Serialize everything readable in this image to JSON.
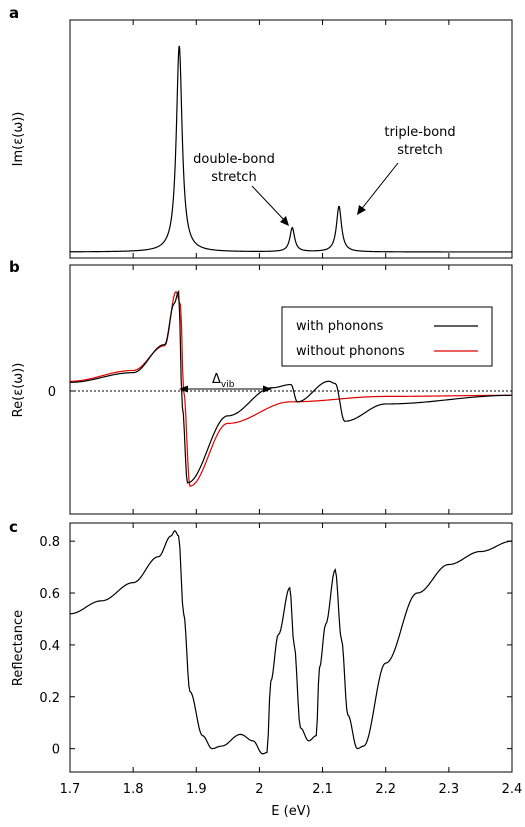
{
  "chart_data": [
    {
      "panel": "a",
      "type": "line",
      "ylabel": "Im(ε(ω))",
      "xlim": [
        1.7,
        2.4
      ],
      "annotations": [
        {
          "text_lines": [
            "double-bond",
            "stretch"
          ],
          "points_to": [
            2.05,
            0.13
          ]
        },
        {
          "text_lines": [
            "triple-bond",
            "stretch"
          ],
          "points_to": [
            2.13,
            0.22
          ]
        }
      ],
      "series": [
        {
          "color": "#000000",
          "peaks": [
            {
              "x0": 1.873,
              "amp": 0.86,
              "gamma": 0.0055
            },
            {
              "x0": 2.052,
              "amp": 0.1,
              "gamma": 0.0045
            },
            {
              "x0": 2.126,
              "amp": 0.19,
              "gamma": 0.0048
            }
          ],
          "x": [
            1.7,
            1.8,
            1.85,
            1.865,
            1.873,
            1.88,
            1.9,
            2.0,
            2.052,
            2.09,
            2.126,
            2.2,
            2.4
          ],
          "y": [
            0.001,
            0.007,
            0.04,
            0.24,
            0.86,
            0.32,
            0.03,
            0.02,
            0.11,
            0.03,
            0.2,
            0.01,
            0.001
          ]
        }
      ]
    },
    {
      "panel": "b",
      "type": "line",
      "ylabel": "Re(ε(ω))",
      "xlim": [
        1.7,
        2.4
      ],
      "ylim": [
        -1.0,
        1.0
      ],
      "ytick_labels": [
        "0"
      ],
      "zero_line": "dotted",
      "annotation": {
        "symbol": "Δ",
        "subscript": "vib",
        "x_from": 1.876,
        "x_to": 2.022,
        "y": 0.0
      },
      "legend": {
        "position": "right",
        "entries": [
          "with phonons",
          "without phonons"
        ]
      },
      "series": [
        {
          "name": "with phonons",
          "color": "#000000",
          "x": [
            1.7,
            1.8,
            1.85,
            1.865,
            1.872,
            1.878,
            1.886,
            1.95,
            2.02,
            2.05,
            2.06,
            2.11,
            2.12,
            2.135,
            2.2,
            2.4
          ],
          "y": [
            0.08,
            0.17,
            0.43,
            0.81,
            0.92,
            -0.15,
            -0.85,
            -0.23,
            0.03,
            0.06,
            -0.1,
            0.09,
            0.07,
            -0.28,
            -0.12,
            -0.04
          ]
        },
        {
          "name": "without phonons",
          "color": "#e00000",
          "x": [
            1.7,
            1.8,
            1.85,
            1.868,
            1.875,
            1.88,
            1.89,
            1.95,
            2.05,
            2.2,
            2.4
          ],
          "y": [
            0.09,
            0.19,
            0.42,
            0.92,
            0.8,
            0.0,
            -0.88,
            -0.3,
            -0.1,
            -0.05,
            -0.04
          ]
        }
      ]
    },
    {
      "panel": "c",
      "type": "line",
      "xlabel": "E (eV)",
      "ylabel": "Reflectance",
      "xlim": [
        1.7,
        2.4
      ],
      "ylim": [
        -0.09,
        0.87
      ],
      "xticks": [
        1.7,
        1.8,
        1.9,
        2.0,
        2.1,
        2.2,
        2.3,
        2.4
      ],
      "xtick_labels": [
        "1.7",
        "1.8",
        "1.9",
        "2",
        "2.1",
        "2.2",
        "2.3",
        "2.4"
      ],
      "yticks": [
        0,
        0.2,
        0.4,
        0.6,
        0.8
      ],
      "ytick_labels": [
        "0",
        "0.2",
        "0.4",
        "0.6",
        "0.8"
      ],
      "series": [
        {
          "color": "#000000",
          "x": [
            1.7,
            1.75,
            1.8,
            1.84,
            1.86,
            1.866,
            1.872,
            1.88,
            1.89,
            1.91,
            1.925,
            1.94,
            1.97,
            1.99,
            2.005,
            2.012,
            2.018,
            2.03,
            2.048,
            2.055,
            2.065,
            2.078,
            2.09,
            2.095,
            2.105,
            2.12,
            2.13,
            2.14,
            2.155,
            2.165,
            2.2,
            2.25,
            2.3,
            2.35,
            2.4
          ],
          "y": [
            0.52,
            0.57,
            0.64,
            0.74,
            0.82,
            0.84,
            0.82,
            0.52,
            0.22,
            0.05,
            0.0,
            0.01,
            0.055,
            0.03,
            -0.02,
            -0.015,
            0.26,
            0.44,
            0.62,
            0.4,
            0.08,
            0.03,
            0.05,
            0.31,
            0.48,
            0.69,
            0.42,
            0.13,
            0.0,
            0.01,
            0.33,
            0.6,
            0.71,
            0.76,
            0.8
          ]
        }
      ]
    }
  ],
  "panel_labels": {
    "a": "a",
    "b": "b",
    "c": "c"
  },
  "texts": {
    "a_ylabel": "Im(ε(ω))",
    "b_ylabel": "Re(ε(ω))",
    "b_zero_tick": "0",
    "c_ylabel": "Reflectance",
    "c_xlabel": "E (eV)",
    "double_bond_line1": "double-bond",
    "double_bond_line2": "stretch",
    "triple_bond_line1": "triple-bond",
    "triple_bond_line2": "stretch",
    "delta_symbol": "Δ",
    "delta_sub": "vib",
    "legend_with": "with phonons",
    "legend_without": "without phonons"
  }
}
